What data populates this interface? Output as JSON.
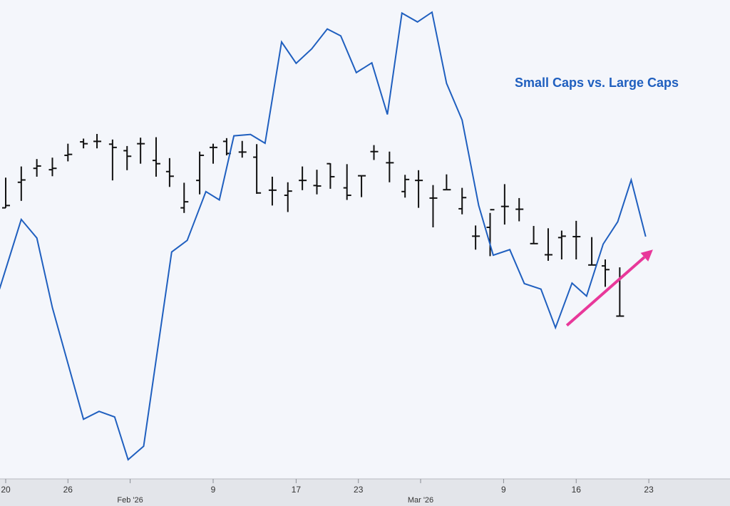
{
  "chart_data": {
    "type": "line",
    "title": "Small Caps vs. Large Caps",
    "xlabel": "",
    "ylabel": "",
    "grid": false,
    "x_ticks": [
      {
        "day": 0,
        "label": "20"
      },
      {
        "day": 6,
        "label": "26"
      },
      {
        "day": 12,
        "label": ""
      },
      {
        "day": 20,
        "label": "9"
      },
      {
        "day": 28,
        "label": "17"
      },
      {
        "day": 34,
        "label": "23"
      },
      {
        "day": 40,
        "label": ""
      },
      {
        "day": 48,
        "label": "9"
      },
      {
        "day": 55,
        "label": "16"
      },
      {
        "day": 62,
        "label": "23"
      }
    ],
    "x_month_labels": [
      {
        "day": 12,
        "label": "Feb '26"
      },
      {
        "day": 40,
        "label": "Mar '26"
      }
    ],
    "x_range": [
      0,
      67
    ],
    "ylim": [
      0,
      100
    ],
    "series": [
      {
        "name": "",
        "color": "#1f5fbf",
        "points": [
          [
            -0.6,
            39
          ],
          [
            1.5,
            54
          ],
          [
            3,
            50
          ],
          [
            4.5,
            35
          ],
          [
            6,
            23
          ],
          [
            7.5,
            11
          ],
          [
            9,
            12.7
          ],
          [
            10.5,
            11.5
          ],
          [
            11.8,
            2.3
          ],
          [
            13.3,
            5.2
          ],
          [
            16,
            47
          ],
          [
            17.5,
            49.5
          ],
          [
            19.3,
            60
          ],
          [
            20.6,
            58.2
          ],
          [
            22,
            72
          ],
          [
            23.6,
            72.3
          ],
          [
            25,
            70.4
          ],
          [
            26.6,
            92.2
          ],
          [
            28,
            87.6
          ],
          [
            29.5,
            90.7
          ],
          [
            31,
            95
          ],
          [
            32.3,
            93.5
          ],
          [
            33.8,
            85.6
          ],
          [
            35.3,
            87.7
          ],
          [
            36.8,
            76.6
          ],
          [
            38.2,
            98.4
          ],
          [
            39.7,
            96.5
          ],
          [
            41.1,
            98.6
          ],
          [
            42.5,
            83.3
          ],
          [
            44,
            75.4
          ],
          [
            45.6,
            57
          ],
          [
            47,
            46.3
          ],
          [
            48.6,
            47.5
          ],
          [
            50,
            40.2
          ],
          [
            51.6,
            39
          ],
          [
            53,
            30.7
          ],
          [
            54.6,
            40.3
          ],
          [
            56,
            37.5
          ],
          [
            57.6,
            48.7
          ],
          [
            59,
            53.5
          ],
          [
            60.3,
            62.5
          ],
          [
            61.7,
            50.3
          ]
        ]
      },
      {
        "name": "",
        "color": "#111111",
        "type": "ohlc",
        "bars": [
          [
            0,
            63,
            56.5,
            56.5,
            57
          ],
          [
            1.5,
            65.4,
            58,
            62,
            62.5
          ],
          [
            3,
            67,
            63.2,
            65,
            65.5
          ],
          [
            4.5,
            67.3,
            63.3,
            64.7,
            65
          ],
          [
            6,
            70.3,
            66.5,
            67.8,
            68
          ],
          [
            7.5,
            71.4,
            69.3,
            70.7,
            70.3
          ],
          [
            8.8,
            72.4,
            69.3,
            70.8,
            70.8
          ],
          [
            10.3,
            71.2,
            62.4,
            70.2,
            69.5
          ],
          [
            11.7,
            69.8,
            64.6,
            68.8,
            67.6
          ],
          [
            13,
            71.6,
            66,
            70.3,
            70.3
          ],
          [
            14.5,
            71.7,
            63.2,
            66.7,
            66
          ],
          [
            15.8,
            67.2,
            61,
            64.3,
            63.3
          ],
          [
            17.2,
            61.9,
            55.4,
            56.5,
            57.8
          ],
          [
            18.7,
            68.6,
            59.4,
            62.4,
            67.8
          ],
          [
            20,
            70.3,
            66,
            69.5,
            69.5
          ],
          [
            21.3,
            71.5,
            67.8,
            70.8,
            68.2
          ],
          [
            22.8,
            70.9,
            67.3,
            68.5,
            68.5
          ],
          [
            24.2,
            70.2,
            59.5,
            67.4,
            59.7
          ],
          [
            25.7,
            63.2,
            57,
            60.3,
            60.3
          ],
          [
            27.2,
            62,
            55.6,
            59.2,
            60.1
          ],
          [
            28.6,
            65.4,
            60.3,
            62.4,
            62.4
          ],
          [
            30,
            64.7,
            59.4,
            61.3,
            61.2
          ],
          [
            31.3,
            66.1,
            60.6,
            66,
            63.2
          ],
          [
            32.9,
            65.9,
            58.2,
            60.8,
            59.2
          ],
          [
            34.3,
            63.4,
            58.8,
            63.4,
            63.4
          ],
          [
            35.5,
            70,
            66.8,
            68.6,
            68.6
          ],
          [
            37,
            68.6,
            62,
            66.2,
            66.2
          ],
          [
            38.5,
            63.6,
            58.7,
            60,
            62.6
          ],
          [
            39.8,
            64.6,
            56.5,
            62.4,
            62.4
          ],
          [
            41.2,
            61.4,
            52.3,
            58.6,
            58.6
          ],
          [
            42.5,
            63.7,
            60.4,
            60.4,
            60.4
          ],
          [
            44,
            60.8,
            55.1,
            56.3,
            58.7
          ],
          [
            45.3,
            52.7,
            47.5,
            50.4,
            50.4
          ],
          [
            46.7,
            55.4,
            46.1,
            52.3,
            56.1
          ],
          [
            48.1,
            61.6,
            52.9,
            56.8,
            56.8
          ],
          [
            49.5,
            58.6,
            53.6,
            56.2,
            56.2
          ],
          [
            50.9,
            52.6,
            48.8,
            48.8,
            48.8
          ],
          [
            52.3,
            52.1,
            45.1,
            46.4,
            46.4
          ],
          [
            53.6,
            51.6,
            45.4,
            50.1,
            50.4
          ],
          [
            55,
            53.7,
            45.4,
            50.3,
            50.3
          ],
          [
            56.5,
            50.2,
            44.2,
            44.2,
            44.2
          ],
          [
            57.8,
            45.4,
            39.5,
            44,
            43.2
          ],
          [
            59.2,
            43.7,
            33.2,
            33.2,
            33.2
          ]
        ]
      }
    ],
    "annotations": [
      {
        "type": "arrow",
        "color": "#e8389a",
        "from": [
          54.1,
          31.2
        ],
        "to": [
          62.4,
          47.5
        ]
      }
    ]
  }
}
